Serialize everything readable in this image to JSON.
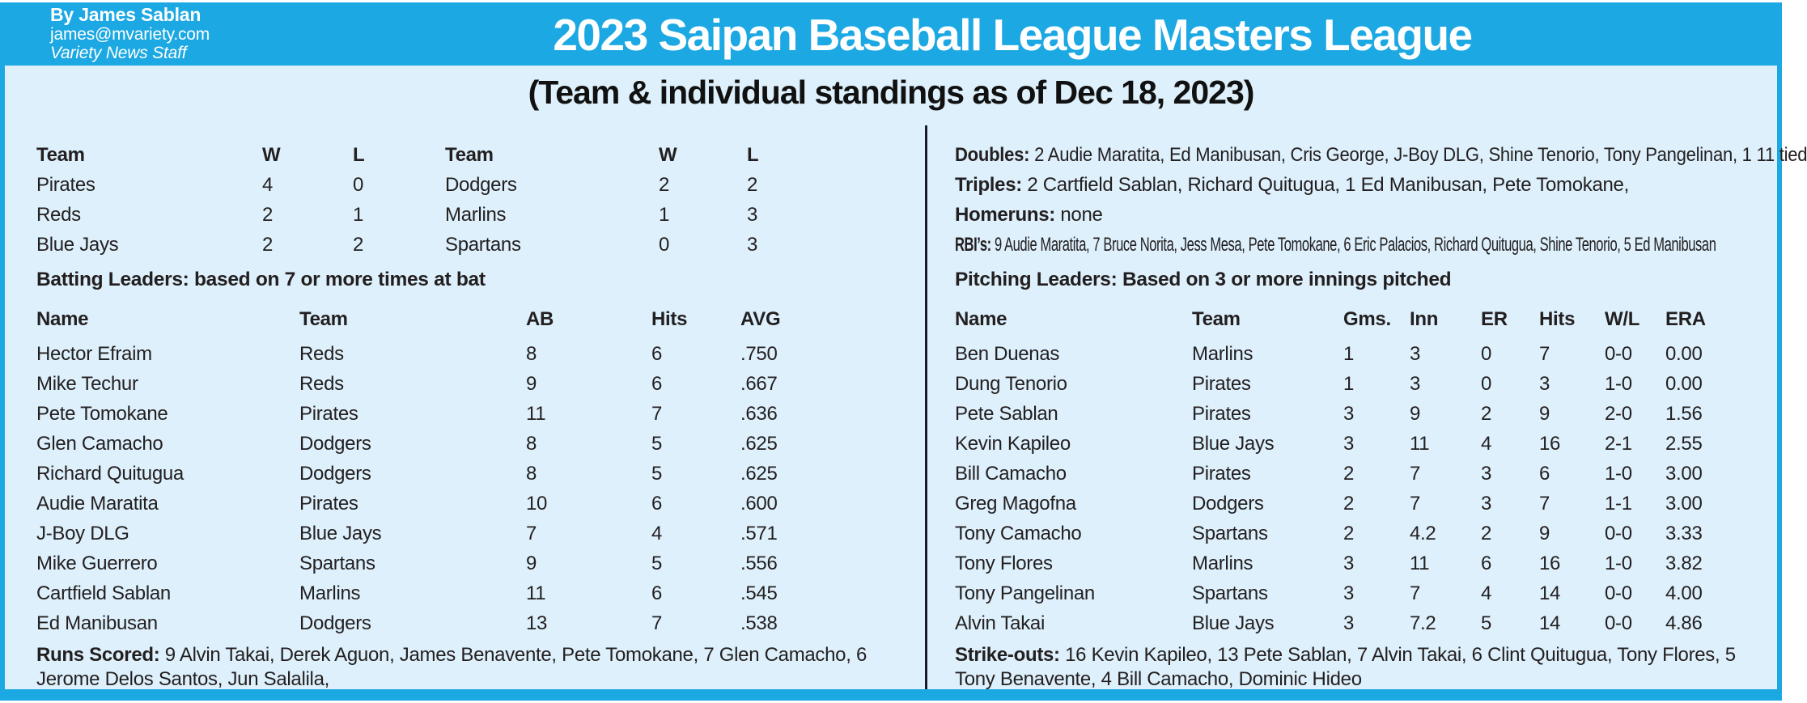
{
  "colors": {
    "accent_cyan": "#1ca8e2",
    "panel_background": "#ddf0fb",
    "text": "#231f20",
    "divider": "#1c1b2e",
    "title_text": "#ffffff"
  },
  "byline": {
    "author": "By James Sablan",
    "email": "james@mvariety.com",
    "org": "Variety News Staff"
  },
  "title": "2023 Saipan Baseball League Masters League",
  "subtitle": "(Team & individual standings as of Dec 18, 2023)",
  "standings": {
    "columns": [
      "Team",
      "W",
      "L"
    ],
    "left": [
      {
        "team": "Pirates",
        "w": "4",
        "l": "0"
      },
      {
        "team": "Reds",
        "w": "2",
        "l": "1"
      },
      {
        "team": "Blue Jays",
        "w": "2",
        "l": "2"
      }
    ],
    "right": [
      {
        "team": "Dodgers",
        "w": "2",
        "l": "2"
      },
      {
        "team": "Marlins",
        "w": "1",
        "l": "3"
      },
      {
        "team": "Spartans",
        "w": "0",
        "l": "3"
      }
    ]
  },
  "batting": {
    "heading": "Batting Leaders: based on 7 or more times at bat",
    "columns": [
      "Name",
      "Team",
      "AB",
      "Hits",
      "AVG"
    ],
    "rows": [
      {
        "name": "Hector Efraim",
        "team": "Reds",
        "ab": "8",
        "hits": "6",
        "avg": ".750"
      },
      {
        "name": "Mike Techur",
        "team": "Reds",
        "ab": "9",
        "hits": "6",
        "avg": ".667"
      },
      {
        "name": "Pete Tomokane",
        "team": "Pirates",
        "ab": "11",
        "hits": "7",
        "avg": ".636"
      },
      {
        "name": "Glen Camacho",
        "team": "Dodgers",
        "ab": "8",
        "hits": "5",
        "avg": ".625"
      },
      {
        "name": "Richard Quitugua",
        "team": "Dodgers",
        "ab": "8",
        "hits": "5",
        "avg": ".625"
      },
      {
        "name": "Audie Maratita",
        "team": "Pirates",
        "ab": "10",
        "hits": "6",
        "avg": ".600"
      },
      {
        "name": "J-Boy DLG",
        "team": "Blue Jays",
        "ab": "7",
        "hits": "4",
        "avg": ".571"
      },
      {
        "name": "Mike Guerrero",
        "team": "Spartans",
        "ab": "9",
        "hits": "5",
        "avg": ".556"
      },
      {
        "name": "Cartfield Sablan",
        "team": "Marlins",
        "ab": "11",
        "hits": "6",
        "avg": ".545"
      },
      {
        "name": "Ed Manibusan",
        "team": "Dodgers",
        "ab": "13",
        "hits": "7",
        "avg": ".538"
      }
    ]
  },
  "runs_scored": {
    "label": "Runs Scored:",
    "text": " 9 Alvin Takai, Derek Aguon, James Benavente, Pete Tomokane, 7 Glen Camacho, 6 Jerome Delos Santos, Jun Salalila,"
  },
  "hitting_notes": [
    {
      "label": "Doubles:",
      "text": " 2 Audie Maratita, Ed Manibusan, Cris George, J-Boy DLG, Shine Tenorio, Tony Pangelinan, 1 11 tied"
    },
    {
      "label": "Triples:",
      "text": " 2 Cartfield Sablan, Richard Quitugua, 1 Ed Manibusan, Pete Tomokane,"
    },
    {
      "label": "Homeruns:",
      "text": " none"
    },
    {
      "label": "RBI’s:",
      "text": " 9 Audie Maratita, 7 Bruce Norita, Jess Mesa, Pete Tomokane, 6 Eric Palacios, Richard Quitugua, Shine Tenorio, 5 Ed Manibusan"
    }
  ],
  "pitching": {
    "heading": "Pitching Leaders: Based on 3 or more innings pitched",
    "columns": [
      "Name",
      "Team",
      "Gms.",
      "Inn",
      "ER",
      "Hits",
      "W/L",
      "ERA"
    ],
    "rows": [
      {
        "name": "Ben Duenas",
        "team": "Marlins",
        "gms": "1",
        "inn": "3",
        "er": "0",
        "hits": "7",
        "wl": "0-0",
        "era": "0.00"
      },
      {
        "name": "Dung Tenorio",
        "team": "Pirates",
        "gms": "1",
        "inn": "3",
        "er": "0",
        "hits": "3",
        "wl": "1-0",
        "era": "0.00"
      },
      {
        "name": "Pete Sablan",
        "team": "Pirates",
        "gms": "3",
        "inn": "9",
        "er": "2",
        "hits": "9",
        "wl": "2-0",
        "era": "1.56"
      },
      {
        "name": "Kevin Kapileo",
        "team": "Blue Jays",
        "gms": "3",
        "inn": "11",
        "er": "4",
        "hits": "16",
        "wl": "2-1",
        "era": "2.55"
      },
      {
        "name": "Bill Camacho",
        "team": "Pirates",
        "gms": "2",
        "inn": "7",
        "er": "3",
        "hits": "6",
        "wl": "1-0",
        "era": "3.00"
      },
      {
        "name": "Greg Magofna",
        "team": "Dodgers",
        "gms": "2",
        "inn": "7",
        "er": "3",
        "hits": "7",
        "wl": "1-1",
        "era": "3.00"
      },
      {
        "name": "Tony Camacho",
        "team": "Spartans",
        "gms": "2",
        "inn": "4.2",
        "er": "2",
        "hits": "9",
        "wl": "0-0",
        "era": "3.33"
      },
      {
        "name": "Tony Flores",
        "team": "Marlins",
        "gms": "3",
        "inn": "11",
        "er": "6",
        "hits": "16",
        "wl": "1-0",
        "era": "3.82"
      },
      {
        "name": "Tony Pangelinan",
        "team": "Spartans",
        "gms": "3",
        "inn": "7",
        "er": "4",
        "hits": "14",
        "wl": "0-0",
        "era": "4.00"
      },
      {
        "name": "Alvin Takai",
        "team": "Blue Jays",
        "gms": "3",
        "inn": "7.2",
        "er": "5",
        "hits": "14",
        "wl": "0-0",
        "era": "4.86"
      }
    ]
  },
  "strikeouts": {
    "label": "Strike-outs:",
    "text": " 16 Kevin Kapileo, 13 Pete Sablan, 7 Alvin Takai, 6 Clint Quitugua, Tony Flores, 5 Tony Benavente, 4 Bill Camacho, Dominic Hideo"
  }
}
